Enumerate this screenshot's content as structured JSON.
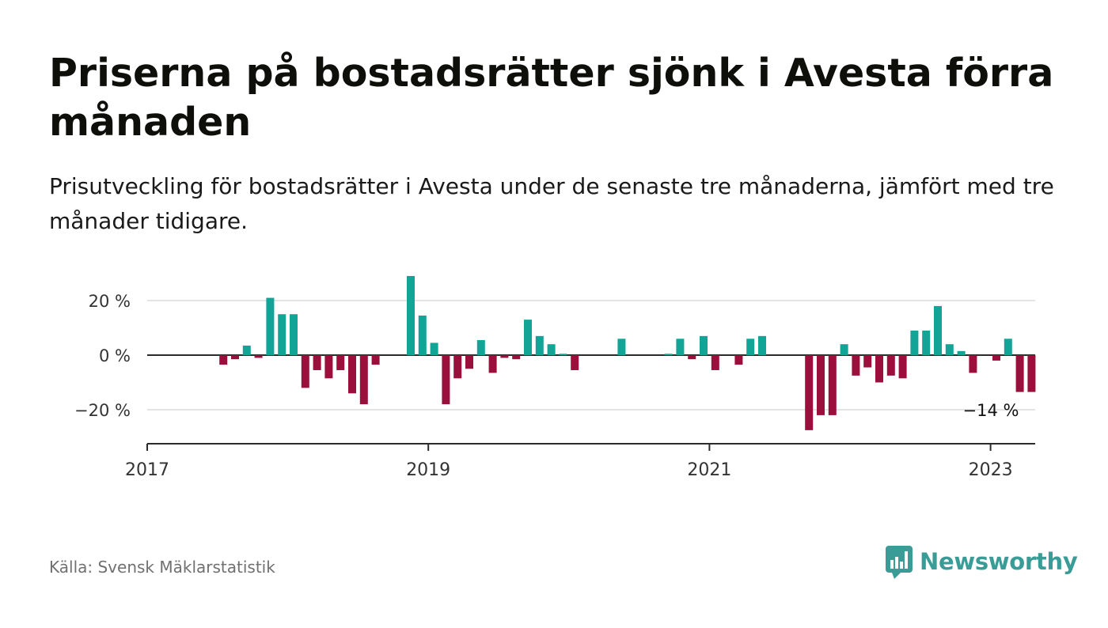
{
  "header": {
    "title": "Priserna på bostadsrätter sjönk i Avesta förra månaden",
    "subtitle": "Prisutveckling för bostadsrätter i Avesta under de senaste tre månaderna, jämfört med tre månader tidigare."
  },
  "footer": {
    "source": "Källa: Svensk Mäklarstatistik",
    "logo_text": "Newsworthy"
  },
  "colors": {
    "positive": "#12a496",
    "negative": "#9b0f3c",
    "logo": "#3a9c97"
  },
  "chart_data": {
    "type": "bar",
    "x_start": "2017-01",
    "unit": "%",
    "values": [
      null,
      null,
      null,
      null,
      null,
      null,
      -3.5,
      -1.5,
      3.5,
      -1,
      21,
      15,
      15,
      -12,
      -5.5,
      -8.5,
      -5.5,
      -14,
      -18,
      -3.5,
      null,
      null,
      29,
      14.5,
      4.5,
      -18,
      -8.5,
      -5,
      5.5,
      -6.5,
      -1,
      -1.5,
      13,
      7,
      4,
      0.5,
      -5.5,
      null,
      null,
      null,
      6,
      null,
      null,
      null,
      0.5,
      6,
      -1.5,
      7,
      -5.5,
      null,
      -3.5,
      6,
      7,
      null,
      null,
      null,
      -27.5,
      -22,
      -22,
      4,
      -7.5,
      -4.5,
      -10,
      -7.5,
      -8.5,
      9,
      9,
      18,
      4,
      1.5,
      -6.5,
      null,
      -2,
      6,
      -13.5,
      -13.5
    ],
    "ylim": [
      -32,
      32
    ],
    "yticks": [
      20,
      0,
      -20
    ],
    "ytick_labels": [
      "20 %",
      "0 %",
      "−20 %"
    ],
    "xticks": [
      "2017",
      "2019",
      "2021",
      "2023"
    ],
    "annotation": "−14 %",
    "grid": true
  }
}
